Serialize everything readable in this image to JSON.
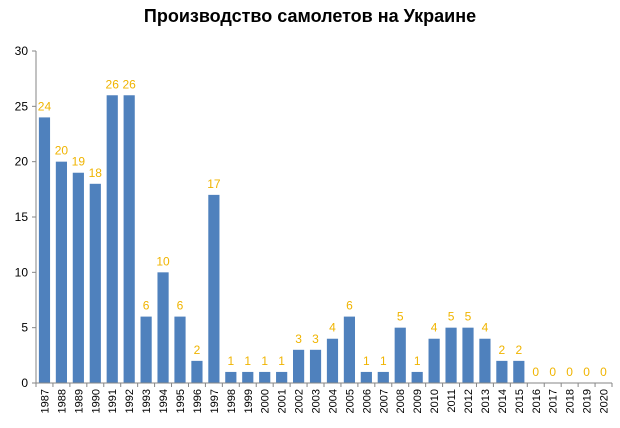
{
  "chart_data": {
    "type": "bar",
    "title": "Производство самолетов на Украине",
    "categories": [
      "1987",
      "1988",
      "1989",
      "1990",
      "1991",
      "1992",
      "1993",
      "1994",
      "1995",
      "1996",
      "1997",
      "1998",
      "1999",
      "2000",
      "2001",
      "2002",
      "2003",
      "2004",
      "2005",
      "2006",
      "2007",
      "2008",
      "2009",
      "2010",
      "2011",
      "2012",
      "2013",
      "2014",
      "2015",
      "2016",
      "2017",
      "2018",
      "2019",
      "2020"
    ],
    "values": [
      24,
      20,
      19,
      18,
      26,
      26,
      6,
      10,
      6,
      2,
      17,
      1,
      1,
      1,
      1,
      3,
      3,
      4,
      6,
      1,
      1,
      5,
      1,
      4,
      5,
      5,
      4,
      2,
      2,
      0,
      0,
      0,
      0,
      0
    ],
    "ylim": [
      0,
      30
    ],
    "yticks": [
      0,
      5,
      10,
      15,
      20,
      25,
      30
    ],
    "xlabel": "",
    "ylabel": "",
    "grid": false,
    "legend": "none",
    "bar_color": "#4f81bd",
    "label_color": "#f0b400",
    "axis_color": "#868686"
  }
}
